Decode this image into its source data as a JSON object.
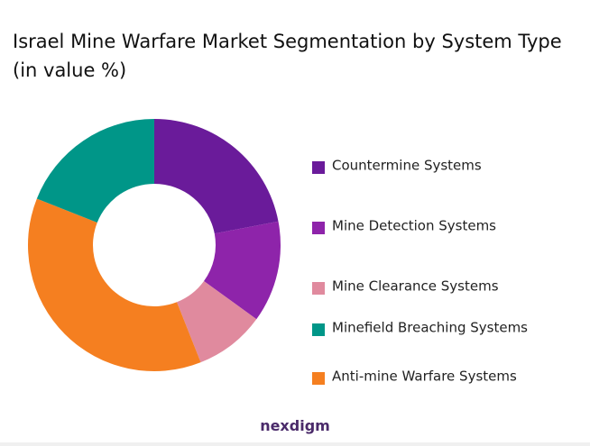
{
  "chart_data": {
    "type": "donut",
    "title": "Israel Mine Warfare Market Segmentation by System Type (in value %)",
    "categories": [
      "Countermine Systems",
      "Mine Detection Systems",
      "Mine Clearance Systems",
      "Minefield Breaching Systems",
      "Anti-mine Warfare Systems"
    ],
    "values": [
      22,
      13,
      9,
      19,
      37
    ],
    "colors": [
      "#6a1b9a",
      "#8e24aa",
      "#e08a9e",
      "#009688",
      "#f57f20"
    ]
  },
  "logo": "nexdigm"
}
